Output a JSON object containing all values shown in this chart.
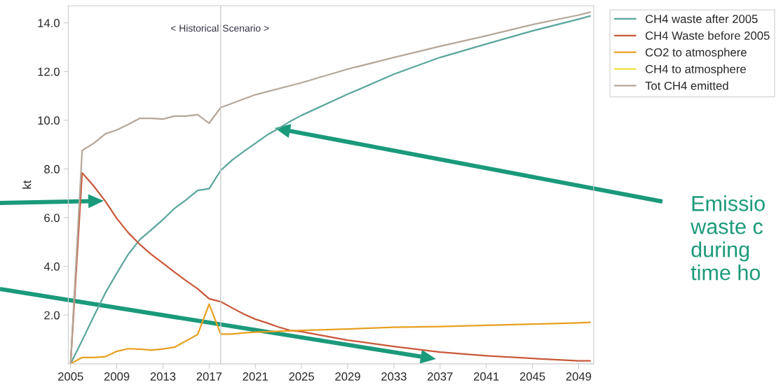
{
  "chart_data": {
    "type": "line",
    "ylabel": "kt",
    "xlim": [
      2004.8,
      2050.3
    ],
    "ylim": [
      0,
      14.7
    ],
    "xticks": [
      2005,
      2009,
      2013,
      2017,
      2021,
      2025,
      2029,
      2033,
      2037,
      2041,
      2045,
      2049
    ],
    "yticks": [
      {
        "value": 2,
        "label": "2.0"
      },
      {
        "value": 4,
        "label": "4.0"
      },
      {
        "value": 6,
        "label": "6.0"
      },
      {
        "value": 8,
        "label": "8.0"
      },
      {
        "value": 10,
        "label": "10.0"
      },
      {
        "value": 12,
        "label": "12.0"
      },
      {
        "value": 14,
        "label": "14.0"
      }
    ],
    "grid": false,
    "legend": "top right",
    "marker": "none",
    "line_style": "solid",
    "series": [
      {
        "name": "CH4 waste after 2005",
        "color": "#5aa69c",
        "x": [
          2005,
          2006,
          2007,
          2008,
          2009,
          2010,
          2011,
          2012,
          2013,
          2014,
          2015,
          2016,
          2017,
          2018,
          2019,
          2020,
          2021,
          2022,
          2023,
          2024,
          2025,
          2029,
          2033,
          2037,
          2041,
          2045,
          2049,
          2050
        ],
        "values": [
          0,
          0.96,
          1.94,
          2.9,
          3.72,
          4.5,
          5.1,
          5.51,
          5.92,
          6.38,
          6.73,
          7.12,
          7.19,
          7.94,
          8.37,
          8.72,
          9.05,
          9.39,
          9.66,
          9.95,
          10.2,
          11.07,
          11.89,
          12.58,
          13.13,
          13.67,
          14.15,
          14.28
        ]
      },
      {
        "name": "CH4 Waste before 2005",
        "color": "#c9583a",
        "x": [
          2005,
          2006,
          2007,
          2008,
          2009,
          2010,
          2011,
          2012,
          2013,
          2014,
          2015,
          2016,
          2017,
          2018,
          2019,
          2020,
          2021,
          2022,
          2023,
          2024,
          2025,
          2029,
          2033,
          2037,
          2041,
          2045,
          2049,
          2050
        ],
        "values": [
          0,
          7.84,
          7.3,
          6.68,
          5.97,
          5.38,
          4.9,
          4.49,
          4.13,
          3.76,
          3.41,
          3.08,
          2.67,
          2.55,
          2.29,
          2.04,
          1.83,
          1.68,
          1.51,
          1.37,
          1.32,
          0.97,
          0.71,
          0.48,
          0.33,
          0.22,
          0.12,
          0.12
        ]
      },
      {
        "name": "CO2 to atmosphere",
        "color": "#e8a020",
        "x": [
          2005,
          2006,
          2007,
          2008,
          2009,
          2010,
          2011,
          2012,
          2013,
          2014,
          2015,
          2016,
          2017,
          2018,
          2019,
          2020,
          2021,
          2025,
          2029,
          2033,
          2037,
          2041,
          2045,
          2049,
          2050
        ],
        "values": [
          0,
          0.26,
          0.26,
          0.29,
          0.51,
          0.62,
          0.6,
          0.56,
          0.61,
          0.68,
          0.94,
          1.2,
          2.45,
          1.22,
          1.22,
          1.27,
          1.3,
          1.37,
          1.43,
          1.5,
          1.53,
          1.58,
          1.63,
          1.68,
          1.7
        ]
      },
      {
        "name": "CH4 to atmosphere",
        "color": "#f2e13a"
      },
      {
        "name": "Tot CH4 emitted",
        "color": "#b5a79a",
        "x": [
          2005,
          2006,
          2007,
          2008,
          2009,
          2010,
          2011,
          2012,
          2013,
          2014,
          2015,
          2016,
          2017,
          2018,
          2021,
          2025,
          2029,
          2033,
          2037,
          2041,
          2045,
          2049,
          2050
        ],
        "values": [
          0,
          8.76,
          9.05,
          9.44,
          9.6,
          9.83,
          10.08,
          10.08,
          10.05,
          10.17,
          10.17,
          10.23,
          9.88,
          10.52,
          11.05,
          11.54,
          12.1,
          12.58,
          13.04,
          13.47,
          13.93,
          14.32,
          14.44
        ]
      }
    ],
    "ref_lines": [
      {
        "axis": "x",
        "value": 2018,
        "label": "< Historical",
        "color": "#cccccc"
      }
    ],
    "annotations": [
      "Scenario >",
      "Emissio\nwaste c\nduring\ntime ho"
    ]
  }
}
